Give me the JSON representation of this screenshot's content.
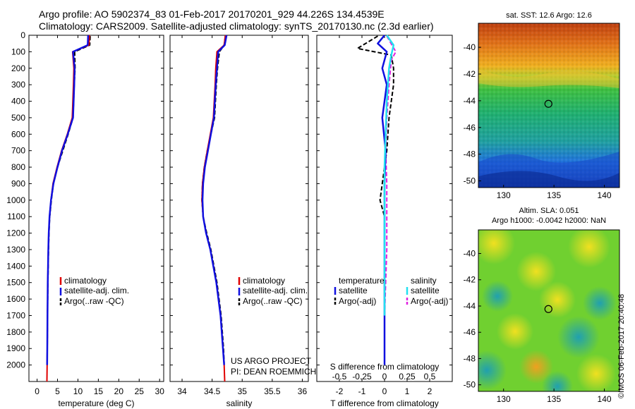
{
  "header": {
    "line1": "Argo profile: AO 5902374_83 01-Feb-2017 20170201_929 44.226S 134.4539E",
    "line2": "Climatology: CARS2009. Satellite-adjusted climatology: synTS_20170130.nc (2.3d earlier)"
  },
  "side_label": "©IMOS 06-Feb-2017 20:40:48",
  "credits": {
    "line1": "US ARGO PROJECT",
    "line2": "PI: DEAN ROEMMICH"
  },
  "colors": {
    "climatology": "#e00000",
    "satellite": "#1010e0",
    "argo": "#000000",
    "sat_salinity": "#22e0f0",
    "argo_salinity": "#e020e0"
  },
  "chart_data": [
    {
      "type": "line",
      "xlabel": "temperature (deg C)",
      "ylabel": "",
      "xlim": [
        -2,
        31
      ],
      "ylim": [
        2100,
        0
      ],
      "xticks": [
        0,
        5,
        10,
        15,
        20,
        25,
        30
      ],
      "yticks": [
        0,
        100,
        200,
        300,
        400,
        500,
        600,
        700,
        800,
        900,
        1000,
        1100,
        1200,
        1300,
        1400,
        1500,
        1600,
        1700,
        1800,
        1900,
        2000
      ],
      "legend": [
        "climatology",
        "satellite-adj. clim.",
        "Argo(..raw -QC)"
      ],
      "series": [
        {
          "name": "climatology",
          "x": [
            12.8,
            12.7,
            8.7,
            9.0,
            8.9,
            8.6,
            7.4,
            6.0,
            4.9,
            3.9,
            3.4,
            3.05,
            2.85,
            2.75,
            2.62,
            2.55,
            2.5,
            2.45,
            2.4
          ],
          "y": [
            0,
            60,
            100,
            200,
            300,
            500,
            600,
            700,
            800,
            900,
            1000,
            1100,
            1200,
            1300,
            1500,
            1700,
            1900,
            2000,
            2100
          ]
        },
        {
          "name": "satellite-adj. clim.",
          "x": [
            12.5,
            12.4,
            8.8,
            9.2,
            9.1,
            8.8,
            7.5,
            6.1,
            5.0,
            4.0,
            3.4,
            3.05,
            2.85,
            2.75,
            2.62,
            2.55,
            2.5,
            2.45
          ],
          "y": [
            0,
            60,
            100,
            200,
            300,
            500,
            600,
            700,
            800,
            900,
            1000,
            1100,
            1200,
            1300,
            1500,
            1700,
            1900,
            2000
          ]
        },
        {
          "name": "Argo(..raw -QC)",
          "x": [
            13.0,
            12.9,
            9.2,
            9.3,
            9.1,
            8.8,
            7.6,
            6.3,
            5.0,
            4.0,
            3.5,
            3.1,
            2.9,
            2.8,
            2.65,
            2.55,
            2.5,
            2.48
          ],
          "y": [
            5,
            60,
            100,
            200,
            300,
            500,
            600,
            700,
            800,
            900,
            1000,
            1100,
            1200,
            1300,
            1500,
            1700,
            1900,
            1990
          ]
        }
      ]
    },
    {
      "type": "line",
      "xlabel": "salinity",
      "ylabel": "",
      "xlim": [
        33.8,
        36.1
      ],
      "ylim": [
        2100,
        0
      ],
      "xticks": [
        34,
        34.5,
        35,
        35.5,
        36
      ],
      "legend": [
        "climatology",
        "satellite-adj. clim.",
        "Argo(..raw -QC)"
      ],
      "series": [
        {
          "name": "climatology",
          "x": [
            34.72,
            34.7,
            34.58,
            34.56,
            34.55,
            34.52,
            34.47,
            34.42,
            34.37,
            34.34,
            34.33,
            34.35,
            34.4,
            34.47,
            34.57,
            34.64,
            34.68,
            34.7,
            34.71
          ],
          "y": [
            0,
            60,
            100,
            200,
            300,
            500,
            600,
            700,
            800,
            900,
            1000,
            1100,
            1200,
            1300,
            1500,
            1700,
            1900,
            2000,
            2100
          ]
        },
        {
          "name": "satellite-adj. clim.",
          "x": [
            34.74,
            34.71,
            34.6,
            34.58,
            34.56,
            34.53,
            34.48,
            34.43,
            34.38,
            34.35,
            34.34,
            34.35,
            34.4,
            34.47,
            34.57,
            34.64,
            34.68,
            34.7
          ],
          "y": [
            0,
            60,
            100,
            200,
            300,
            500,
            600,
            700,
            800,
            900,
            1000,
            1100,
            1200,
            1300,
            1500,
            1700,
            1900,
            2000
          ]
        },
        {
          "name": "Argo(..raw -QC)",
          "x": [
            34.72,
            34.7,
            34.62,
            34.59,
            34.57,
            34.54,
            34.48,
            34.42,
            34.37,
            34.34,
            34.33,
            34.35,
            34.41,
            34.48,
            34.58,
            34.65,
            34.69,
            34.7
          ],
          "y": [
            5,
            60,
            100,
            200,
            300,
            500,
            600,
            700,
            800,
            900,
            1000,
            1100,
            1200,
            1300,
            1500,
            1700,
            1900,
            1990
          ]
        }
      ]
    },
    {
      "type": "line",
      "xlabel": "T difference from climatology",
      "xlabel_top": "S difference from climatology",
      "ylabel": "",
      "xlim": [
        -3,
        3
      ],
      "ylim": [
        2100,
        0
      ],
      "xticks": [
        -2,
        -1,
        0,
        1,
        2
      ],
      "xticks_top": [
        "-0.5",
        "-0.25",
        "0",
        "0.25",
        "0.5"
      ],
      "legend_left_title": "temperature",
      "legend_right_title": "salinity",
      "legend": [
        "satellite",
        "Argo(-adj)",
        "satellite",
        "Argo(-adj)"
      ],
      "series": [
        {
          "name": "satellite",
          "x": [
            0.0,
            -0.3,
            0.1,
            -0.1,
            0.1,
            -0.1,
            0.05,
            0.0,
            0.0,
            0.0,
            0.0,
            0.0,
            0.0
          ],
          "y": [
            0,
            50,
            100,
            200,
            300,
            500,
            700,
            900,
            1100,
            1300,
            1500,
            1700,
            2000
          ]
        },
        {
          "name": "Argo(-adj)",
          "x": [
            -0.3,
            -1.2,
            0.3,
            0.4,
            0.4,
            0.2,
            0.1,
            -0.1,
            -0.2,
            0.0,
            0.0,
            0.0,
            0.0
          ],
          "y": [
            5,
            80,
            120,
            200,
            300,
            500,
            700,
            900,
            1000,
            1100,
            1300,
            1500,
            1990
          ]
        },
        {
          "name": "satellite",
          "x": [
            0.1,
            0.4,
            0.3,
            0.2,
            0.1,
            0.05,
            0.0,
            0.0,
            0.0,
            0.0,
            0.0,
            0.0
          ],
          "y": [
            0,
            60,
            120,
            200,
            400,
            600,
            800,
            1000,
            1200,
            1400,
            1600,
            1700
          ]
        },
        {
          "name": "Argo(-adj)",
          "x": [
            0.1,
            0.5,
            0.3,
            0.2,
            0.1,
            0.05,
            0.1,
            0.1,
            0.1,
            0.05,
            0.0
          ],
          "y": [
            5,
            100,
            150,
            300,
            500,
            700,
            900,
            1100,
            1300,
            1500,
            1700
          ]
        }
      ]
    },
    {
      "type": "heatmap",
      "title": "sat. SST: 12.6 Argo: 12.6",
      "xlim": [
        127.5,
        141.5
      ],
      "ylim": [
        -50.5,
        -38.2
      ],
      "xticks": [
        130,
        135,
        140
      ],
      "yticks": [
        -40,
        -42,
        -44,
        -46,
        -48,
        -50
      ],
      "marker": {
        "x": 134.45,
        "y": -44.23
      }
    },
    {
      "type": "heatmap",
      "title": "Altim. SLA: 0.051",
      "subtitle": "Argo h1000: -0.0042 h2000: NaN",
      "xlim": [
        127.5,
        141.5
      ],
      "ylim": [
        -50.5,
        -38.2
      ],
      "xticks": [
        130,
        135,
        140
      ],
      "yticks": [
        -40,
        -42,
        -44,
        -46,
        -48,
        -50
      ],
      "marker": {
        "x": 134.45,
        "y": -44.23
      }
    }
  ]
}
